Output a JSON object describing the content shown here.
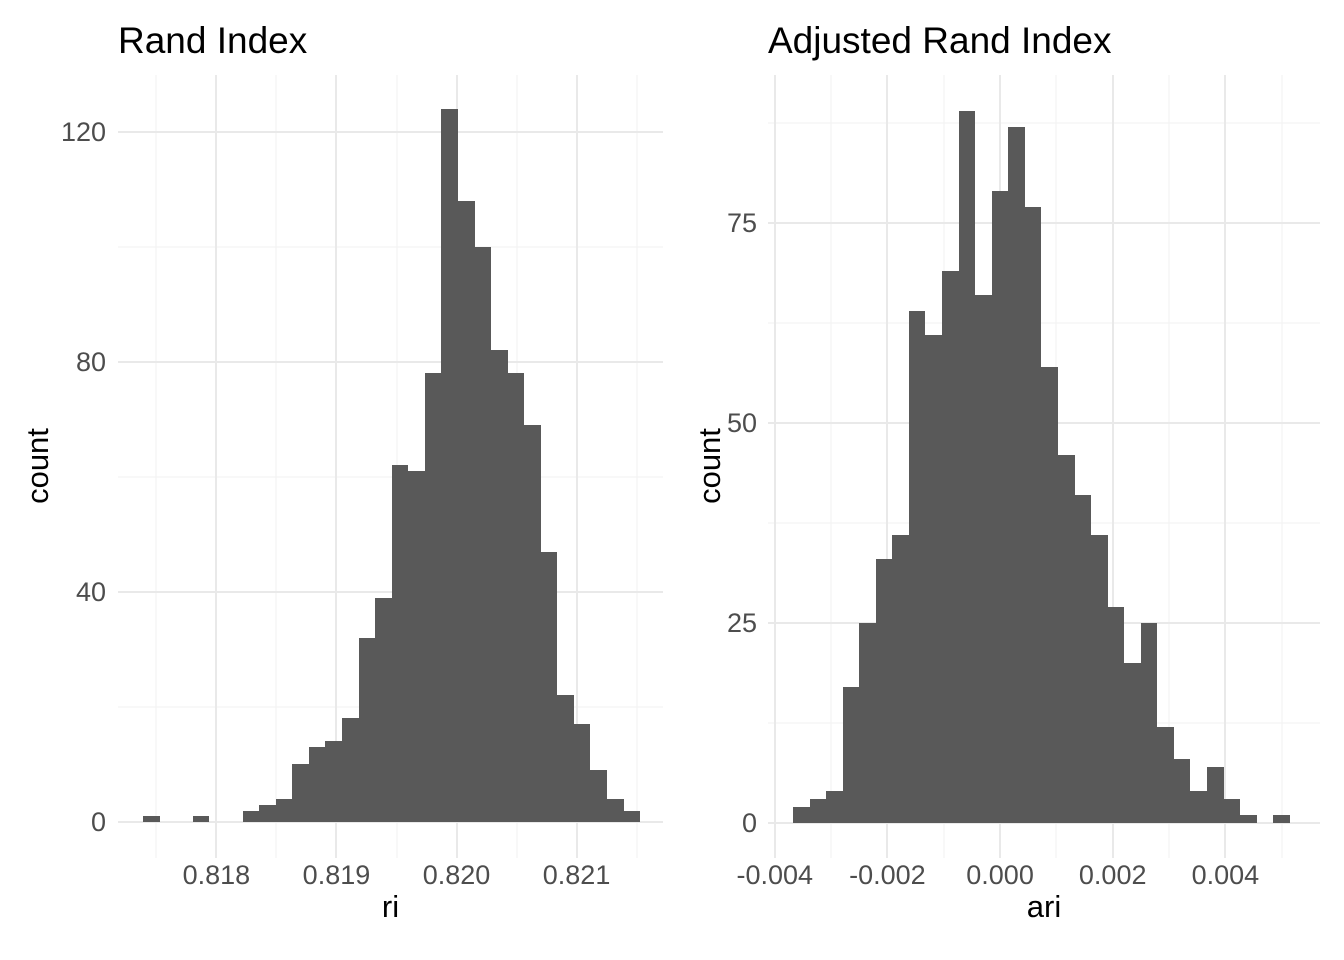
{
  "colors": {
    "background": "#FFFFFF",
    "bar_fill": "#595959",
    "grid_major": "#E9E9E9",
    "grid_minor": "#F2F2F2",
    "tick_text": "#4D4D4D",
    "title_text": "#000000"
  },
  "chart_data": [
    {
      "type": "bar",
      "subtype": "histogram",
      "title": "Rand Index",
      "xlabel": "ri",
      "ylabel": "count",
      "bins": {
        "start": 0.81739,
        "width": 0.000138
      },
      "counts": [
        1,
        0,
        0,
        1,
        0,
        0,
        2,
        3,
        4,
        10,
        13,
        14,
        18,
        32,
        39,
        62,
        61,
        78,
        124,
        108,
        100,
        82,
        78,
        69,
        47,
        22,
        17,
        9,
        4,
        2
      ],
      "x_ticks": {
        "values": [
          0.818,
          0.819,
          0.82,
          0.821
        ],
        "labels": [
          "0.818",
          "0.819",
          "0.820",
          "0.821"
        ]
      },
      "y_ticks": {
        "values": [
          0,
          40,
          80,
          120
        ],
        "labels": [
          "0",
          "40",
          "80",
          "120"
        ]
      },
      "x_minor": [
        0.8175,
        0.8185,
        0.8195,
        0.8205,
        0.8215
      ],
      "y_minor": [
        20,
        60,
        100
      ],
      "xlim": [
        0.81718,
        0.82172
      ],
      "ylim": [
        -6.26,
        129.9
      ],
      "grid": true,
      "legend": null
    },
    {
      "type": "bar",
      "subtype": "histogram",
      "title": "Adjusted Rand Index",
      "xlabel": "ari",
      "ylabel": "count",
      "bins": {
        "start": -0.003676,
        "width": 0.000294
      },
      "counts": [
        2,
        3,
        4,
        17,
        25,
        33,
        36,
        64,
        61,
        69,
        89,
        66,
        79,
        87,
        77,
        57,
        46,
        41,
        36,
        27,
        20,
        25,
        12,
        8,
        4,
        7,
        3,
        1,
        0,
        1
      ],
      "x_ticks": {
        "values": [
          -0.004,
          -0.002,
          0.0,
          0.002,
          0.004
        ],
        "labels": [
          "-0.004",
          "-0.002",
          "0.000",
          "0.002",
          "0.004"
        ]
      },
      "y_ticks": {
        "values": [
          0,
          25,
          50,
          75
        ],
        "labels": [
          "0",
          "25",
          "50",
          "75"
        ]
      },
      "x_minor": [
        -0.003,
        -0.001,
        0.001,
        0.003,
        0.005
      ],
      "y_minor": [
        12.5,
        37.5,
        62.5,
        87.5
      ],
      "xlim": [
        -0.00412,
        0.00568
      ],
      "ylim": [
        -4.375,
        93.5
      ],
      "grid": true,
      "legend": null
    }
  ]
}
